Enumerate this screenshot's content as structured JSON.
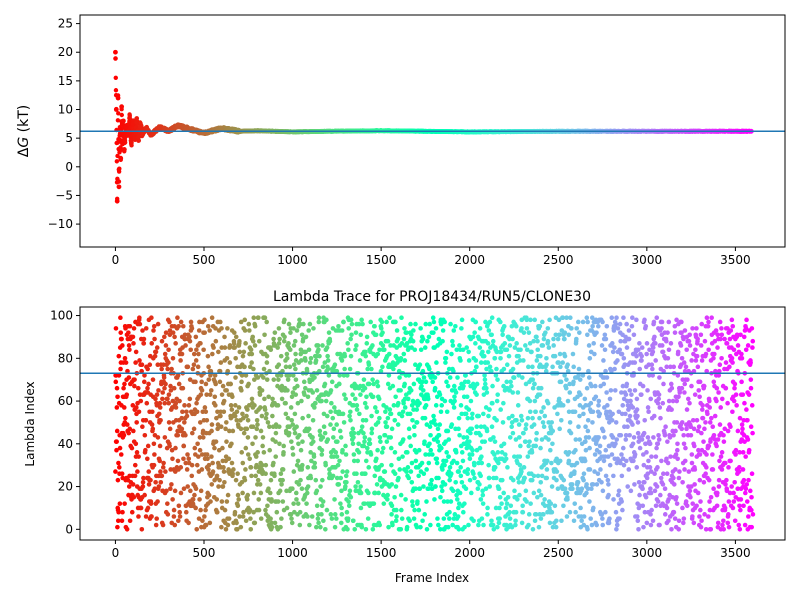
{
  "chart_data": [
    {
      "type": "scatter",
      "title": "",
      "xlabel": "",
      "ylabel_prefix": "Δ",
      "ylabel_var": "G",
      "ylabel_suffix": " (kT)",
      "xlim": [
        -200,
        3780
      ],
      "ylim": [
        -14,
        26.5
      ],
      "xticks": [
        0,
        500,
        1000,
        1500,
        2000,
        2500,
        3000,
        3500
      ],
      "yticks": [
        -10,
        -5,
        0,
        5,
        10,
        15,
        20,
        25
      ],
      "hline": 6.2,
      "series_description": "Running free-energy estimate converging to ~6.2 kT",
      "x": [
        0,
        5,
        10,
        15,
        20,
        25,
        30,
        35,
        40,
        45,
        50,
        60,
        70,
        80,
        90,
        100,
        110,
        120,
        130,
        140,
        150,
        175,
        200,
        250,
        300,
        350,
        400,
        450,
        500,
        600,
        700,
        800,
        1000,
        1200,
        1500,
        2000,
        2500,
        3000,
        3590
      ],
      "y": [
        20,
        10,
        -6,
        12,
        -3.5,
        6.5,
        1.5,
        10.5,
        4,
        8,
        3,
        7,
        5.5,
        8.5,
        4.2,
        7.5,
        5,
        7.8,
        5.2,
        7,
        5.5,
        6.8,
        5.6,
        6.9,
        6.2,
        7.2,
        6.8,
        6.3,
        5.9,
        6.7,
        6.2,
        6.3,
        6.1,
        6.2,
        6.3,
        6.1,
        6.2,
        6.2,
        6.2
      ]
    },
    {
      "type": "scatter",
      "title": "Lambda Trace for PROJ18434/RUN5/CLONE30",
      "xlabel": "Frame Index",
      "ylabel": "Lambda Index",
      "xlim": [
        -200,
        3780
      ],
      "ylim": [
        -5,
        104
      ],
      "xticks": [
        0,
        500,
        1000,
        1500,
        2000,
        2500,
        3000,
        3500
      ],
      "yticks": [
        0,
        20,
        40,
        60,
        80,
        100
      ],
      "hline": 73,
      "n_points": 3600,
      "x_range": [
        0,
        3599
      ],
      "y_range": [
        0,
        99
      ],
      "color_map": "rainbow (red at frame 0 to violet at last frame)"
    }
  ]
}
